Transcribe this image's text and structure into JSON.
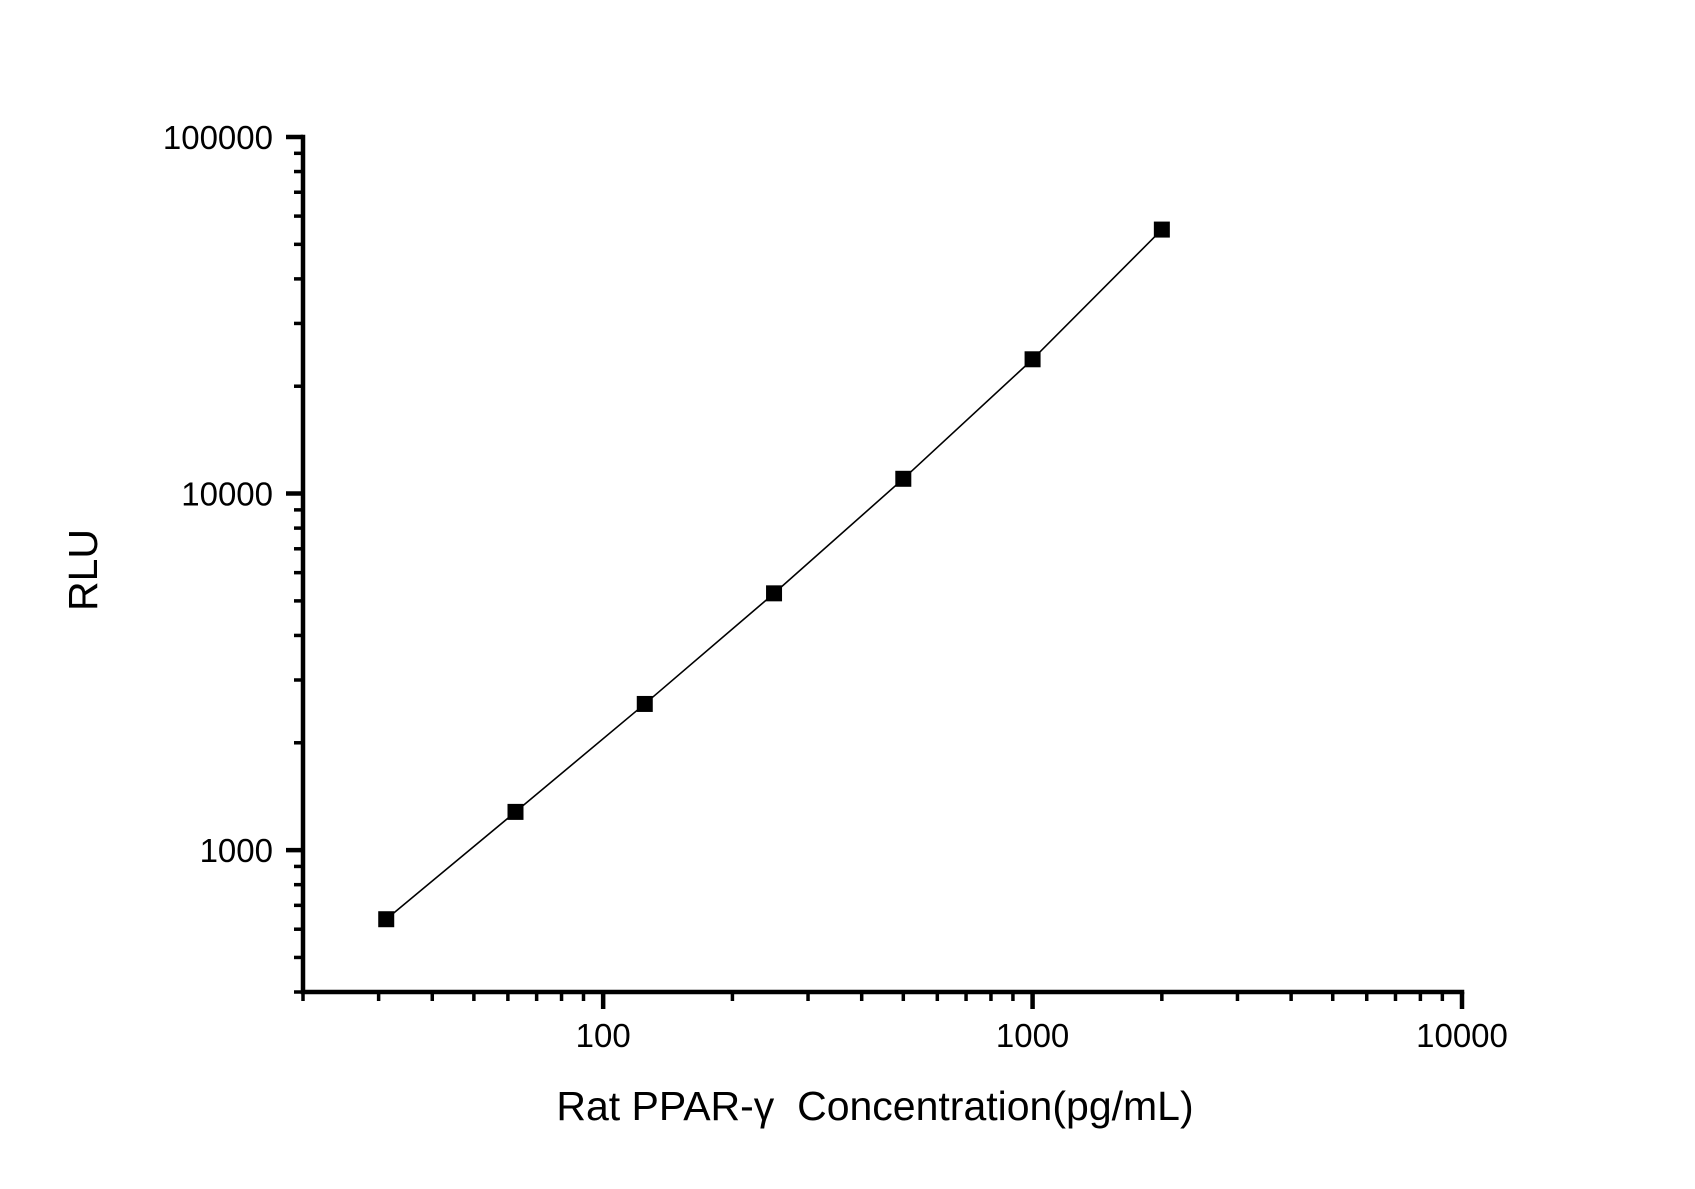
{
  "chart_data": {
    "type": "line",
    "subtype": "scatter-line-standard-curve",
    "title": "",
    "xlabel": "Rat PPAR-γ  Concentration(pg/mL)",
    "ylabel": "RLU",
    "x_scale": "log",
    "y_scale": "log",
    "xlim": [
      20,
      10000
    ],
    "ylim": [
      400,
      100000
    ],
    "x": [
      31.25,
      62.5,
      125,
      250,
      500,
      1000,
      2000
    ],
    "y": [
      640,
      1280,
      2570,
      5250,
      11000,
      23800,
      55000
    ],
    "x_major_ticks": [
      100,
      1000,
      10000
    ],
    "x_major_tick_labels": [
      "100",
      "1000",
      "10000"
    ],
    "y_major_ticks": [
      1000,
      10000,
      100000
    ],
    "y_major_tick_labels": [
      "1000",
      "10000",
      "100000"
    ],
    "marker": "filled-square",
    "marker_color": "#000000",
    "line_color": "#000000",
    "axis_color": "#000000",
    "text_color": "#000000",
    "background_color": "#ffffff",
    "grid": false,
    "legend": null
  }
}
